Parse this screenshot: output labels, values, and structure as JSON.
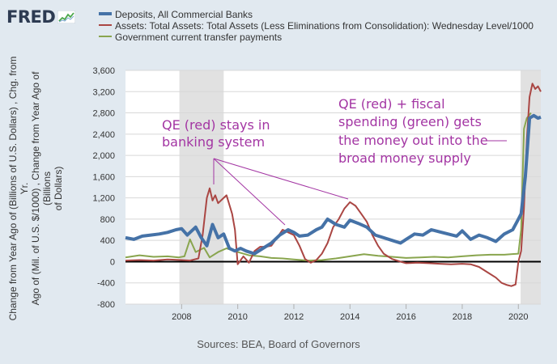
{
  "brand": {
    "name": "FRED"
  },
  "legend": [
    {
      "label": "Deposits, All Commercial Banks",
      "color": "#4572a7",
      "icon": "blue-line-swatch"
    },
    {
      "label": "Assets: Total Assets: Total Assets (Less Eliminations from Consolidation): Wednesday Level/1000",
      "color": "#aa4643",
      "icon": "red-line-swatch"
    },
    {
      "label": "Government current transfer payments",
      "color": "#89a54e",
      "icon": "green-line-swatch"
    }
  ],
  "y_axis_title_lines": [
    "Change from Year Ago of (Billions of U.S. Dollars) , Chg. from Yr.",
    "Ago of (Mil. of U.S. $/1000) , Change from Year Ago of (Billions",
    "of Dollars)"
  ],
  "source_text": "Sources: BEA, Board of Governors",
  "colors": {
    "background": "#e1e9f0",
    "plot": "#ffffff",
    "recession": "#e1e1e1",
    "deposits": "#4572a7",
    "assets": "#aa4643",
    "transfers": "#89a54e",
    "annotation": "#a335a3"
  },
  "chart_data": {
    "type": "line",
    "xlim": [
      2006.0,
      2020.8
    ],
    "ylim": [
      -800,
      3600
    ],
    "x_ticks": [
      2008,
      2010,
      2012,
      2014,
      2016,
      2018,
      2020
    ],
    "y_ticks": [
      -800,
      -400,
      0,
      400,
      800,
      1200,
      1600,
      2000,
      2400,
      2800,
      3200,
      3600
    ],
    "y_tick_labels": [
      "-800",
      "-400",
      "0",
      "400",
      "800",
      "1,200",
      "1,600",
      "2,000",
      "2,400",
      "2,800",
      "3,200",
      "3,600"
    ],
    "recessions": [
      [
        2007.92,
        2009.5
      ],
      [
        2020.08,
        2020.8
      ]
    ],
    "gridlines": "horizontal",
    "series": [
      {
        "name": "Deposits, All Commercial Banks",
        "key": "deposits",
        "x": [
          2006.0,
          2006.3,
          2006.6,
          2006.9,
          2007.2,
          2007.5,
          2007.8,
          2008.0,
          2008.2,
          2008.5,
          2008.7,
          2008.9,
          2009.1,
          2009.3,
          2009.5,
          2009.7,
          2009.9,
          2010.1,
          2010.3,
          2010.6,
          2010.9,
          2011.2,
          2011.5,
          2011.8,
          2012.0,
          2012.2,
          2012.5,
          2012.8,
          2013.0,
          2013.2,
          2013.5,
          2013.8,
          2014.0,
          2014.3,
          2014.6,
          2014.9,
          2015.2,
          2015.5,
          2015.8,
          2016.0,
          2016.3,
          2016.6,
          2016.9,
          2017.2,
          2017.5,
          2017.8,
          2018.0,
          2018.3,
          2018.6,
          2018.9,
          2019.2,
          2019.5,
          2019.8,
          2020.0,
          2020.1,
          2020.25,
          2020.4,
          2020.55,
          2020.7,
          2020.8
        ],
        "y": [
          450,
          420,
          480,
          500,
          520,
          550,
          600,
          620,
          500,
          650,
          450,
          300,
          700,
          450,
          520,
          250,
          200,
          250,
          200,
          150,
          250,
          350,
          500,
          600,
          550,
          480,
          500,
          600,
          650,
          800,
          700,
          650,
          780,
          720,
          650,
          500,
          450,
          400,
          350,
          420,
          520,
          500,
          600,
          560,
          520,
          480,
          580,
          420,
          500,
          450,
          380,
          520,
          600,
          800,
          900,
          1600,
          2700,
          2750,
          2700,
          2720
        ]
      },
      {
        "name": "Assets: Total Assets: Total Assets (Less Eliminations from Consolidation): Wednesday Level/1000",
        "key": "assets",
        "x": [
          2006.0,
          2006.5,
          2007.0,
          2007.5,
          2008.0,
          2008.3,
          2008.6,
          2008.75,
          2008.9,
          2009.0,
          2009.1,
          2009.2,
          2009.3,
          2009.5,
          2009.6,
          2009.8,
          2009.9,
          2010.0,
          2010.2,
          2010.4,
          2010.6,
          2010.8,
          2011.0,
          2011.2,
          2011.4,
          2011.6,
          2011.8,
          2012.0,
          2012.2,
          2012.4,
          2012.6,
          2012.8,
          2013.0,
          2013.2,
          2013.4,
          2013.6,
          2013.8,
          2014.0,
          2014.2,
          2014.4,
          2014.6,
          2014.8,
          2015.0,
          2015.2,
          2015.5,
          2015.8,
          2016.0,
          2016.4,
          2016.8,
          2017.2,
          2017.6,
          2018.0,
          2018.3,
          2018.6,
          2018.9,
          2019.2,
          2019.4,
          2019.6,
          2019.75,
          2019.9,
          2020.0,
          2020.1,
          2020.2,
          2020.3,
          2020.4,
          2020.5,
          2020.6,
          2020.7,
          2020.8
        ],
        "y": [
          20,
          30,
          20,
          40,
          30,
          20,
          60,
          500,
          1200,
          1380,
          1150,
          1250,
          1100,
          1200,
          1250,
          900,
          600,
          -50,
          100,
          -20,
          200,
          280,
          280,
          300,
          450,
          600,
          550,
          500,
          300,
          50,
          -20,
          30,
          150,
          350,
          650,
          800,
          1000,
          1120,
          1050,
          900,
          750,
          500,
          300,
          150,
          50,
          0,
          -30,
          -20,
          -30,
          -40,
          -50,
          -40,
          -50,
          -100,
          -200,
          -300,
          -400,
          -440,
          -460,
          -430,
          0,
          200,
          1000,
          2300,
          3100,
          3350,
          3250,
          3300,
          3200
        ]
      },
      {
        "name": "Government current transfer payments",
        "key": "transfers",
        "x": [
          2006.0,
          2006.5,
          2007.0,
          2007.5,
          2007.9,
          2008.1,
          2008.3,
          2008.5,
          2008.8,
          2009.0,
          2009.3,
          2009.6,
          2010.0,
          2010.4,
          2010.8,
          2011.2,
          2011.6,
          2012.0,
          2012.5,
          2013.0,
          2013.5,
          2014.0,
          2014.5,
          2015.0,
          2015.5,
          2016.0,
          2016.5,
          2017.0,
          2017.5,
          2018.0,
          2018.5,
          2019.0,
          2019.5,
          2020.0,
          2020.1,
          2020.2,
          2020.3,
          2020.45
        ],
        "y": [
          80,
          120,
          90,
          100,
          80,
          100,
          420,
          180,
          260,
          80,
          180,
          250,
          180,
          120,
          100,
          70,
          60,
          40,
          20,
          30,
          60,
          100,
          140,
          110,
          90,
          70,
          80,
          90,
          80,
          100,
          120,
          130,
          130,
          150,
          600,
          2500,
          2700,
          2800
        ]
      }
    ],
    "annotations": [
      {
        "lines": [
          "QE (red) stays in",
          "banking system"
        ]
      },
      {
        "lines": [
          "QE (red) + fiscal",
          "spending (green) gets",
          "the money out into the",
          "broad money supply"
        ]
      }
    ]
  }
}
